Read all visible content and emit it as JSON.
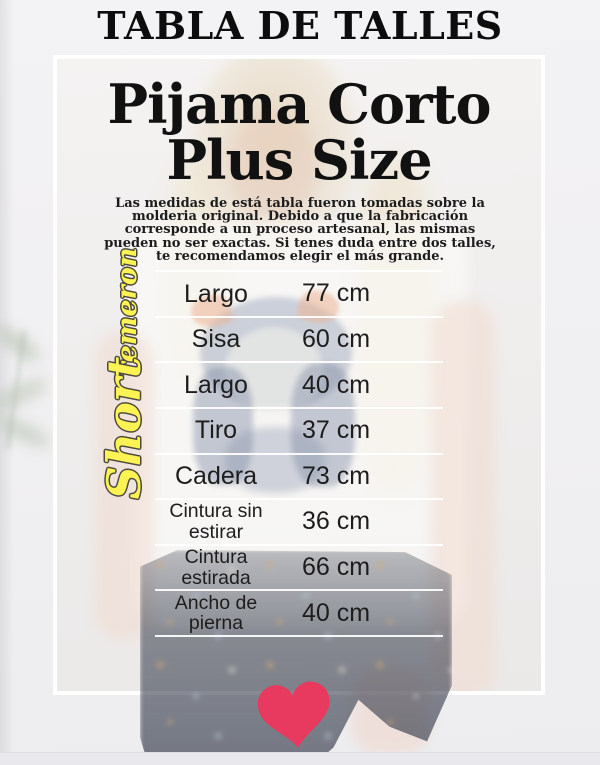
{
  "page": {
    "header_title": "TABLA DE TALLES"
  },
  "card": {
    "title": "Pijama Corto\nPlus Size",
    "disclaimer": "Las medidas de está tabla fueron tomadas sobre la\nmolderia original. Debido a que la fabricación\ncorresponde a un proceso artesanal, las mismas\npueden no ser exactas. Si tenes duda entre dos talles,\nte recomendamos elegir el más grande.",
    "side_labels": {
      "primary": "Short",
      "secondary": "remeron",
      "color": "#fbf353"
    },
    "size_table": {
      "rows": [
        {
          "label": "Largo",
          "value": "77 cm"
        },
        {
          "label": "Sisa",
          "value": "60 cm"
        },
        {
          "label": "Largo",
          "value": "40 cm"
        },
        {
          "label": "Tiro",
          "value": "37 cm"
        },
        {
          "label": "Cadera",
          "value": "73 cm"
        },
        {
          "label": "Cintura sin\nestirar",
          "value": "36 cm"
        },
        {
          "label": "Cintura\nestirada",
          "value": "66 cm"
        },
        {
          "label": "Ancho de\npierna",
          "value": "40 cm"
        }
      ]
    },
    "heart": {
      "icon": "heart-icon",
      "color": "#e8395f"
    }
  }
}
